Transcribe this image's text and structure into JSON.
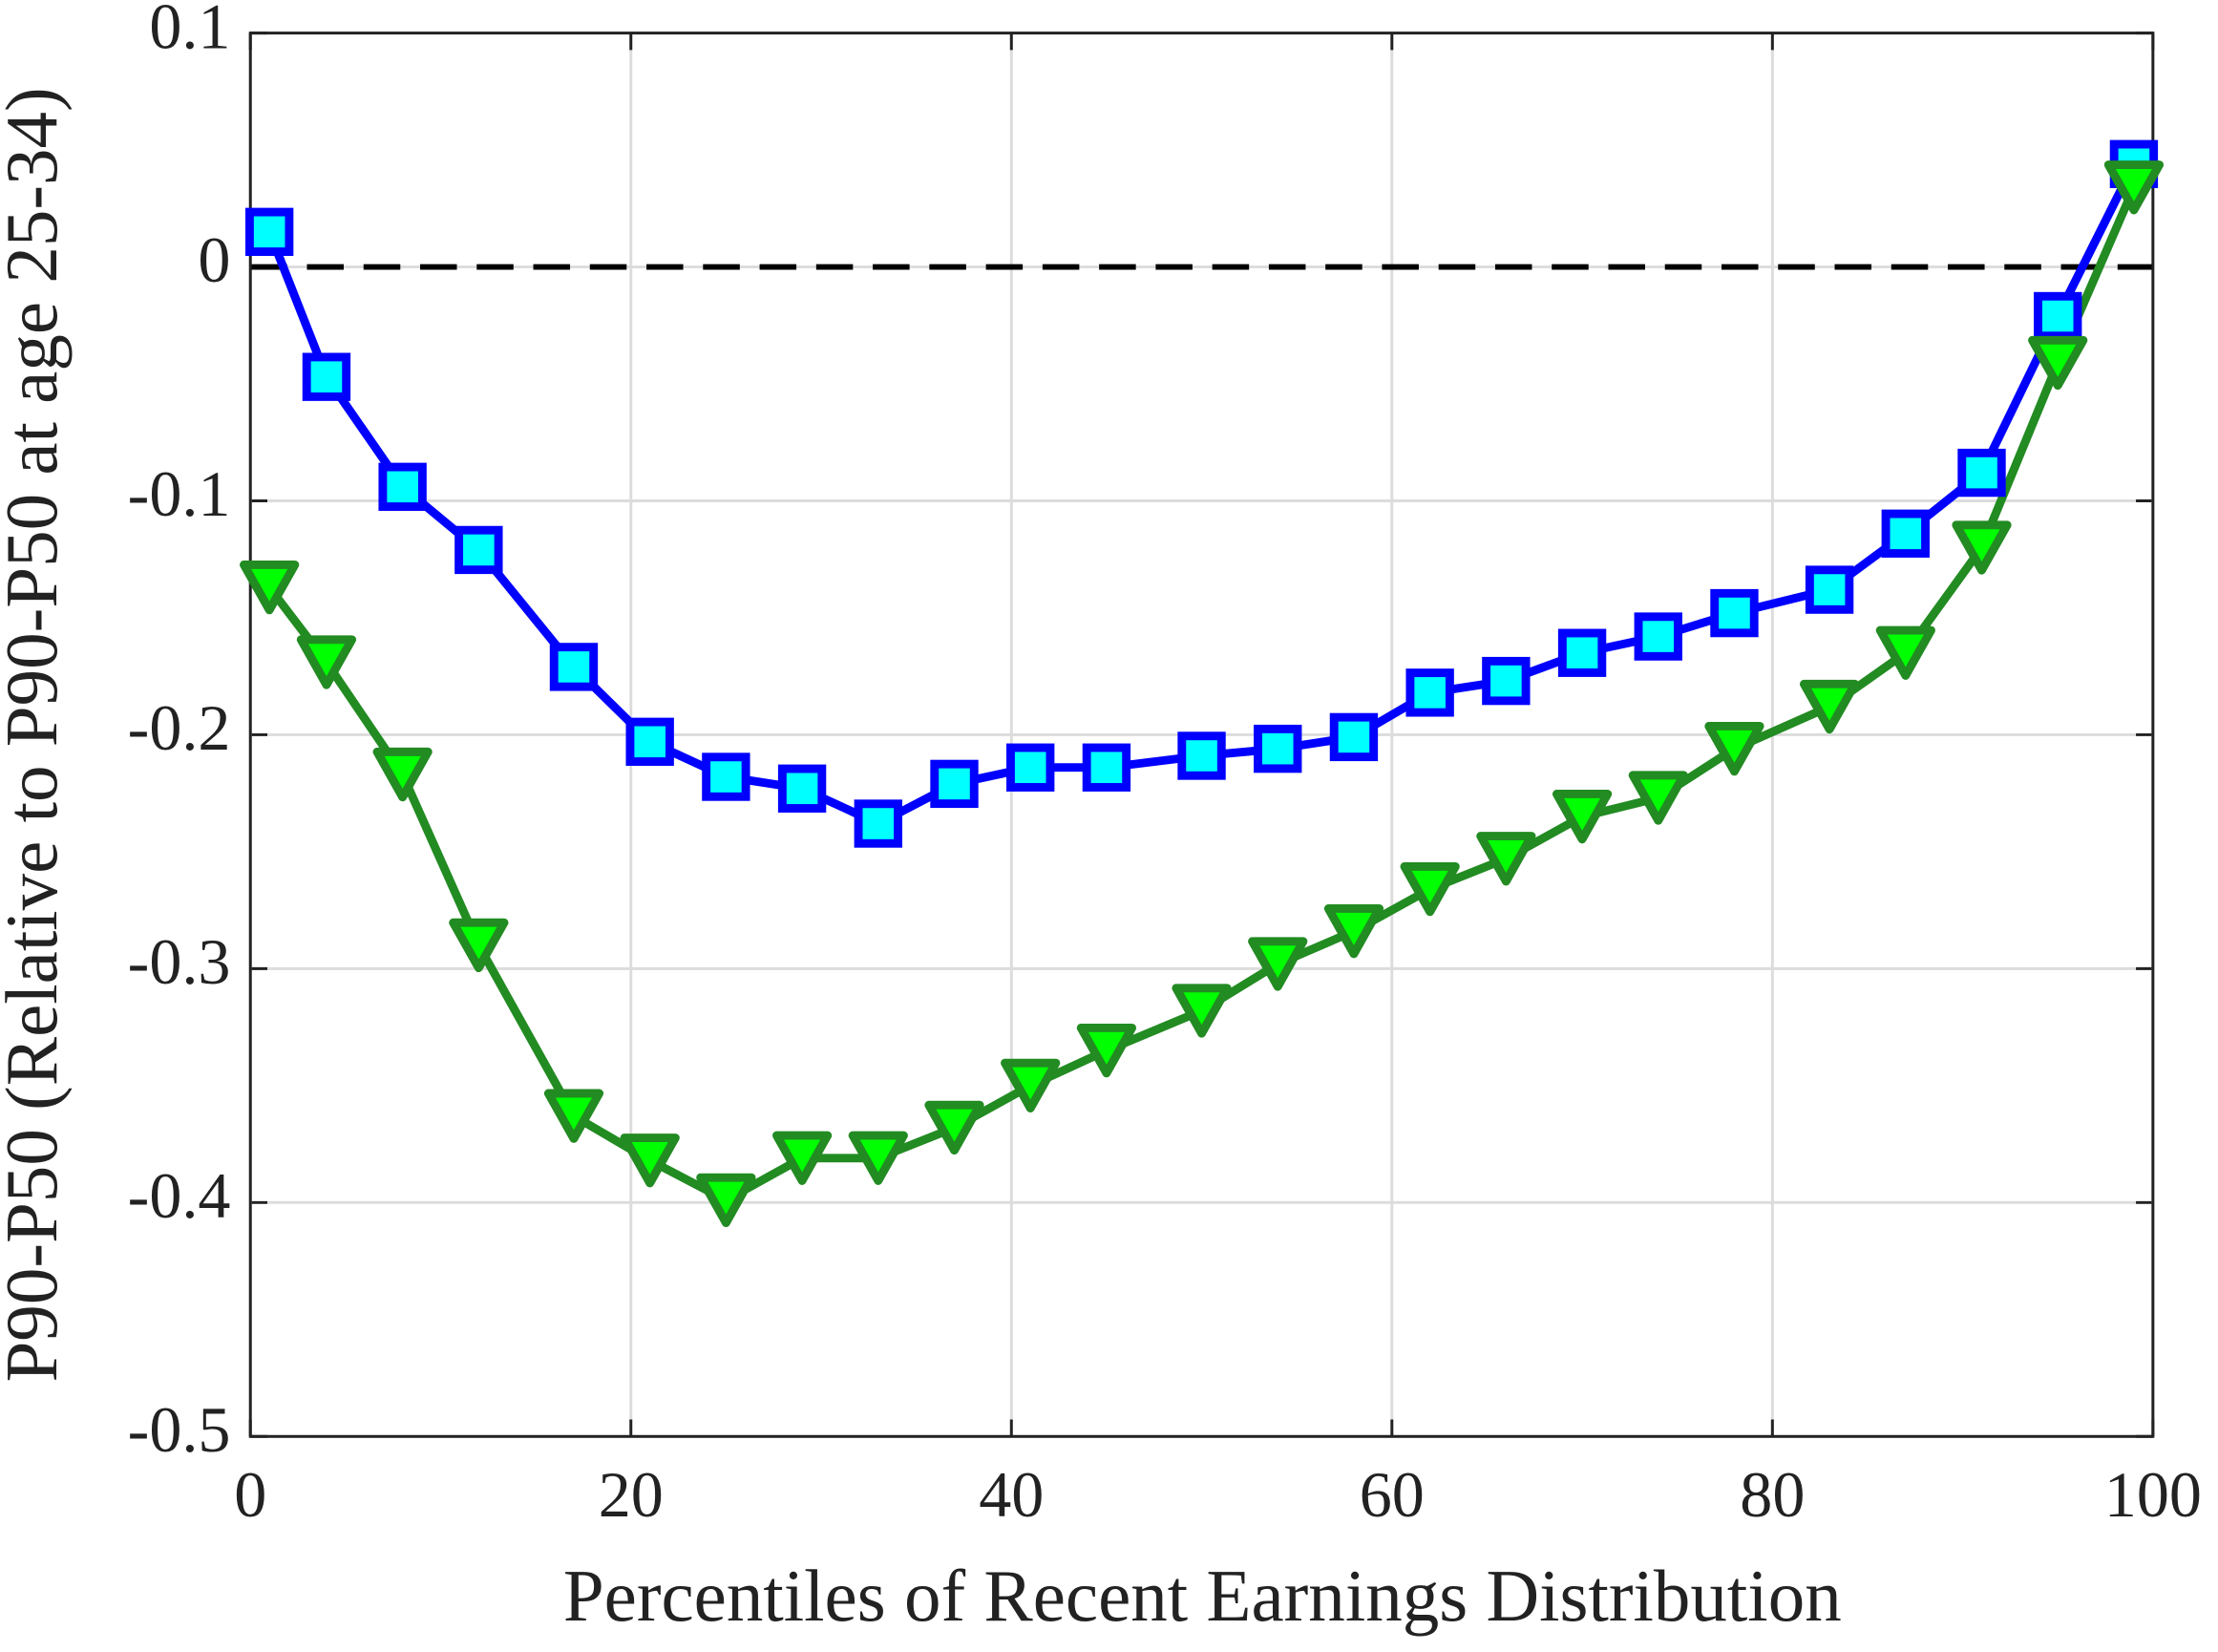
{
  "chart_data": {
    "type": "line",
    "xlabel": "Percentiles of Recent Earnings Distribution",
    "ylabel": "P90-P50 (Relative to P90-P50 at age 25-34)",
    "x": [
      1,
      4,
      8,
      12,
      17,
      21,
      25,
      29,
      33,
      37,
      41,
      45,
      50,
      54,
      58,
      62,
      66,
      70,
      74,
      78,
      83,
      87,
      91,
      95,
      99
    ],
    "series": [
      {
        "color": "#0000ff",
        "marker": "square",
        "marker_color": "#00ffff",
        "values": [
          0.015,
          -0.047,
          -0.094,
          -0.121,
          -0.171,
          -0.203,
          -0.218,
          -0.223,
          -0.238,
          -0.221,
          -0.214,
          -0.214,
          -0.209,
          -0.206,
          -0.201,
          -0.182,
          -0.177,
          -0.165,
          -0.158,
          -0.148,
          -0.138,
          -0.114,
          -0.088,
          -0.021,
          0.044
        ]
      },
      {
        "color": "#228b22",
        "marker": "triangle-down",
        "marker_color": "#00ff00",
        "values": [
          -0.137,
          -0.169,
          -0.217,
          -0.29,
          -0.363,
          -0.382,
          -0.399,
          -0.381,
          -0.381,
          -0.368,
          -0.35,
          -0.335,
          -0.318,
          -0.298,
          -0.284,
          -0.266,
          -0.253,
          -0.235,
          -0.227,
          -0.206,
          -0.188,
          -0.165,
          -0.12,
          -0.041,
          0.034
        ]
      }
    ],
    "xlim": [
      0,
      100
    ],
    "xticks": [
      0,
      20,
      40,
      60,
      80,
      100
    ],
    "ylim": [
      -0.5,
      0.1
    ],
    "yticks": [
      -0.5,
      -0.4,
      -0.3,
      -0.2,
      -0.1,
      0,
      0.1
    ],
    "grid": true,
    "hline": 0
  }
}
